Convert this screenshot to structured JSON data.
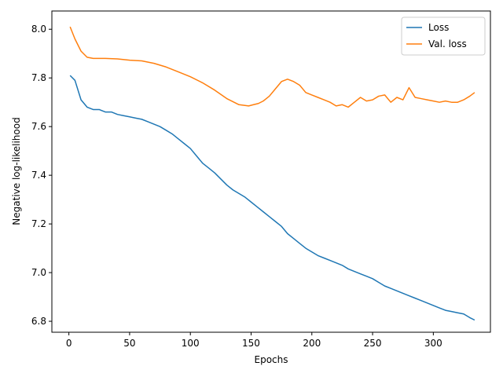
{
  "chart_data": {
    "type": "line",
    "title": "",
    "xlabel": "Epochs",
    "ylabel": "Negative log-likelihood",
    "xlim": [
      -14,
      347
    ],
    "ylim": [
      6.755,
      8.075
    ],
    "xticks": [
      0,
      50,
      100,
      150,
      200,
      250,
      300
    ],
    "yticks": [
      6.8,
      7.0,
      7.2,
      7.4,
      7.6,
      7.8,
      8.0
    ],
    "xtick_labels": [
      "0",
      "50",
      "100",
      "150",
      "200",
      "250",
      "300"
    ],
    "ytick_labels": [
      "6.8",
      "7.0",
      "7.2",
      "7.4",
      "7.6",
      "7.8",
      "8.0"
    ],
    "grid": false,
    "legend": "top-right",
    "series": [
      {
        "name": "Loss",
        "color": "#1f77b4",
        "x": [
          1,
          5,
          10,
          15,
          20,
          25,
          30,
          35,
          40,
          45,
          50,
          55,
          60,
          65,
          70,
          75,
          80,
          85,
          90,
          95,
          100,
          105,
          110,
          115,
          120,
          125,
          130,
          135,
          140,
          145,
          150,
          155,
          160,
          165,
          170,
          175,
          180,
          185,
          190,
          195,
          200,
          205,
          210,
          215,
          220,
          225,
          230,
          235,
          240,
          245,
          250,
          255,
          260,
          265,
          270,
          275,
          280,
          285,
          290,
          295,
          300,
          305,
          310,
          315,
          320,
          325,
          330,
          334
        ],
        "values": [
          7.81,
          7.79,
          7.71,
          7.68,
          7.67,
          7.67,
          7.66,
          7.66,
          7.65,
          7.645,
          7.64,
          7.635,
          7.63,
          7.62,
          7.61,
          7.6,
          7.585,
          7.57,
          7.55,
          7.53,
          7.51,
          7.48,
          7.45,
          7.43,
          7.41,
          7.385,
          7.36,
          7.34,
          7.325,
          7.31,
          7.29,
          7.27,
          7.25,
          7.23,
          7.21,
          7.19,
          7.16,
          7.14,
          7.12,
          7.1,
          7.085,
          7.07,
          7.06,
          7.05,
          7.04,
          7.03,
          7.015,
          7.005,
          6.995,
          6.985,
          6.975,
          6.96,
          6.945,
          6.935,
          6.925,
          6.915,
          6.905,
          6.895,
          6.885,
          6.875,
          6.865,
          6.855,
          6.845,
          6.84,
          6.835,
          6.83,
          6.815,
          6.805
        ]
      },
      {
        "name": "Val. loss",
        "color": "#ff7f0e",
        "x": [
          1,
          5,
          10,
          15,
          20,
          25,
          30,
          40,
          50,
          60,
          70,
          80,
          90,
          100,
          110,
          120,
          130,
          140,
          148,
          152,
          156,
          160,
          165,
          170,
          175,
          180,
          185,
          190,
          195,
          200,
          205,
          210,
          215,
          220,
          225,
          230,
          235,
          240,
          245,
          250,
          255,
          260,
          265,
          270,
          275,
          280,
          285,
          290,
          295,
          300,
          305,
          310,
          315,
          320,
          325,
          330,
          334
        ],
        "values": [
          8.01,
          7.96,
          7.91,
          7.885,
          7.88,
          7.88,
          7.88,
          7.878,
          7.873,
          7.87,
          7.86,
          7.845,
          7.825,
          7.805,
          7.78,
          7.75,
          7.715,
          7.69,
          7.685,
          7.69,
          7.695,
          7.705,
          7.725,
          7.755,
          7.785,
          7.795,
          7.785,
          7.77,
          7.74,
          7.73,
          7.72,
          7.71,
          7.7,
          7.685,
          7.69,
          7.68,
          7.7,
          7.72,
          7.705,
          7.71,
          7.725,
          7.73,
          7.7,
          7.72,
          7.71,
          7.76,
          7.72,
          7.715,
          7.71,
          7.705,
          7.7,
          7.705,
          7.7,
          7.7,
          7.71,
          7.725,
          7.74
        ]
      }
    ]
  }
}
